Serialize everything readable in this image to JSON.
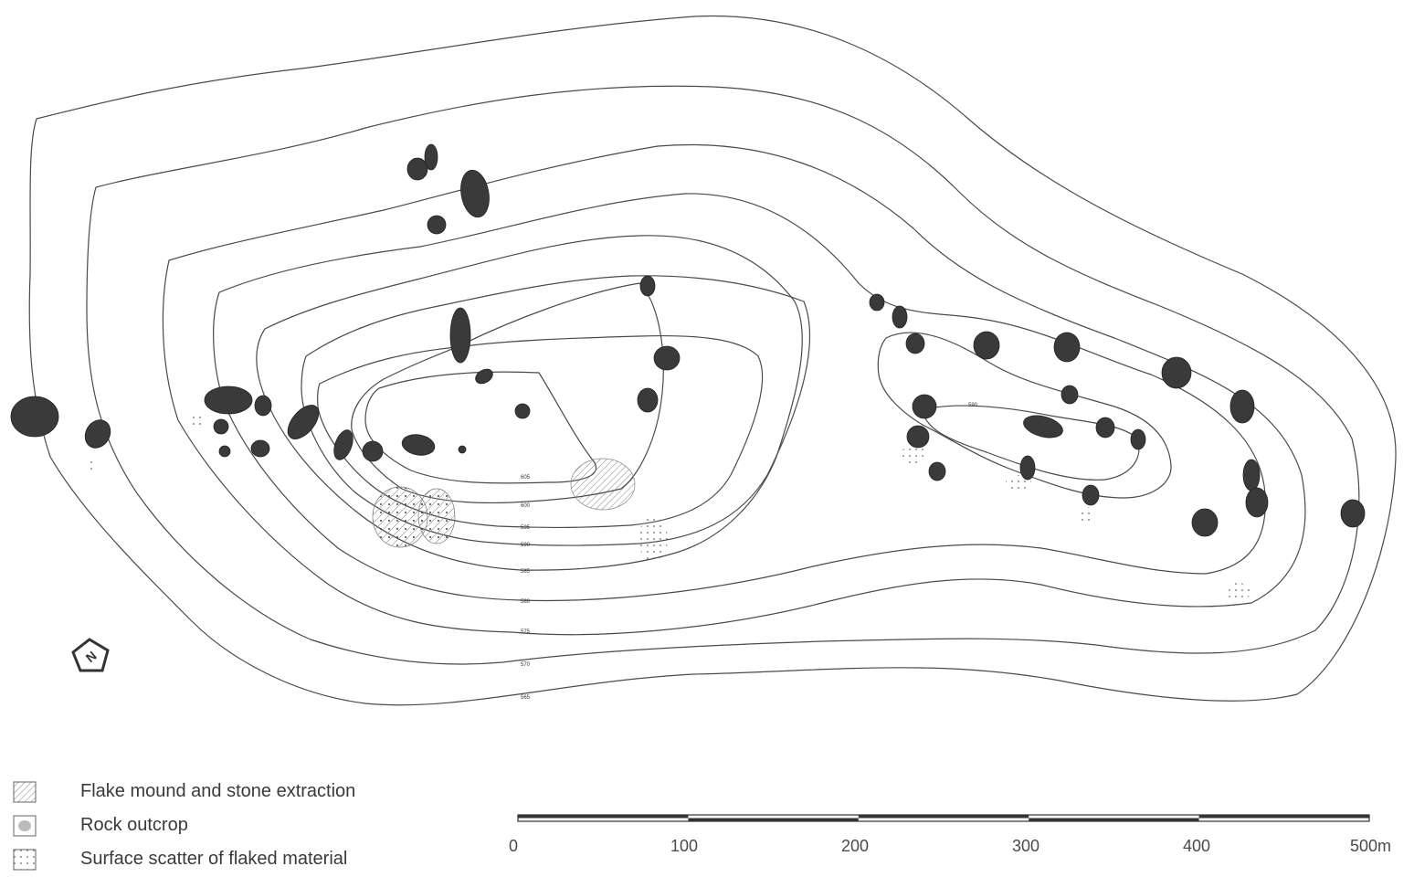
{
  "map": {
    "contour_labels": [
      "565",
      "570",
      "575",
      "580",
      "585",
      "590",
      "595",
      "600",
      "605",
      "590"
    ],
    "north_label": "N",
    "colors": {
      "contour": "#4a4a4a",
      "outcrop": "#3a3a3a",
      "text": "#3a3a3a"
    }
  },
  "legend": {
    "items": [
      {
        "label": "Flake mound and stone extraction",
        "pattern": "hatch"
      },
      {
        "label": "Rock outcrop",
        "pattern": "outcrop"
      },
      {
        "label": "Surface scatter of flaked material",
        "pattern": "dots"
      }
    ]
  },
  "scale_bar": {
    "labels": [
      "0",
      "100",
      "200",
      "300",
      "400",
      "500m"
    ]
  }
}
